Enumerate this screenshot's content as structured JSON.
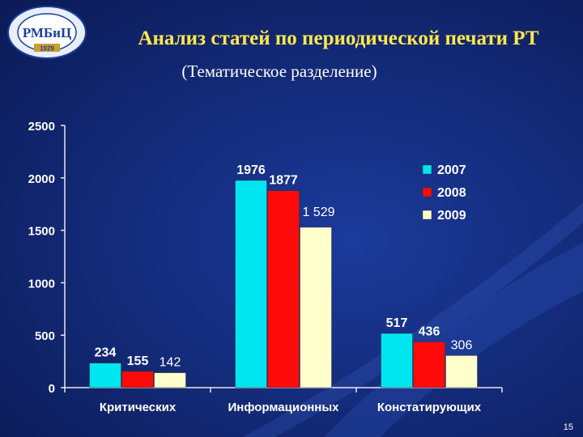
{
  "header": {
    "title": "Анализ статей по периодической печати РТ",
    "subtitle": "(Тематическое разделение)"
  },
  "logo": {
    "text": "РМБиЦ",
    "year": "1929",
    "icon": "emblem-seal"
  },
  "footer": {
    "page_number": "15"
  },
  "colors": {
    "2007": "#00e6f0",
    "2008": "#ff0a0a",
    "2009": "#ffffcc",
    "axis": "#e8e8e8",
    "text": "#ffffff"
  },
  "chart_data": {
    "type": "bar",
    "categories": [
      "Критических",
      "Информационных",
      "Констатирующих"
    ],
    "series": [
      {
        "name": "2007",
        "values": [
          234,
          1976,
          517
        ],
        "labels": [
          "234",
          "1976",
          "517"
        ]
      },
      {
        "name": "2008",
        "values": [
          155,
          1877,
          436
        ],
        "labels": [
          "155",
          "1877",
          "436"
        ]
      },
      {
        "name": "2009",
        "values": [
          142,
          1529,
          306
        ],
        "labels": [
          "142",
          "1 529",
          "306"
        ]
      }
    ],
    "ylim": [
      0,
      2500
    ],
    "yticks": [
      "0",
      "500",
      "1000",
      "1500",
      "2000",
      "2500"
    ],
    "legend": "right",
    "grid": false
  }
}
